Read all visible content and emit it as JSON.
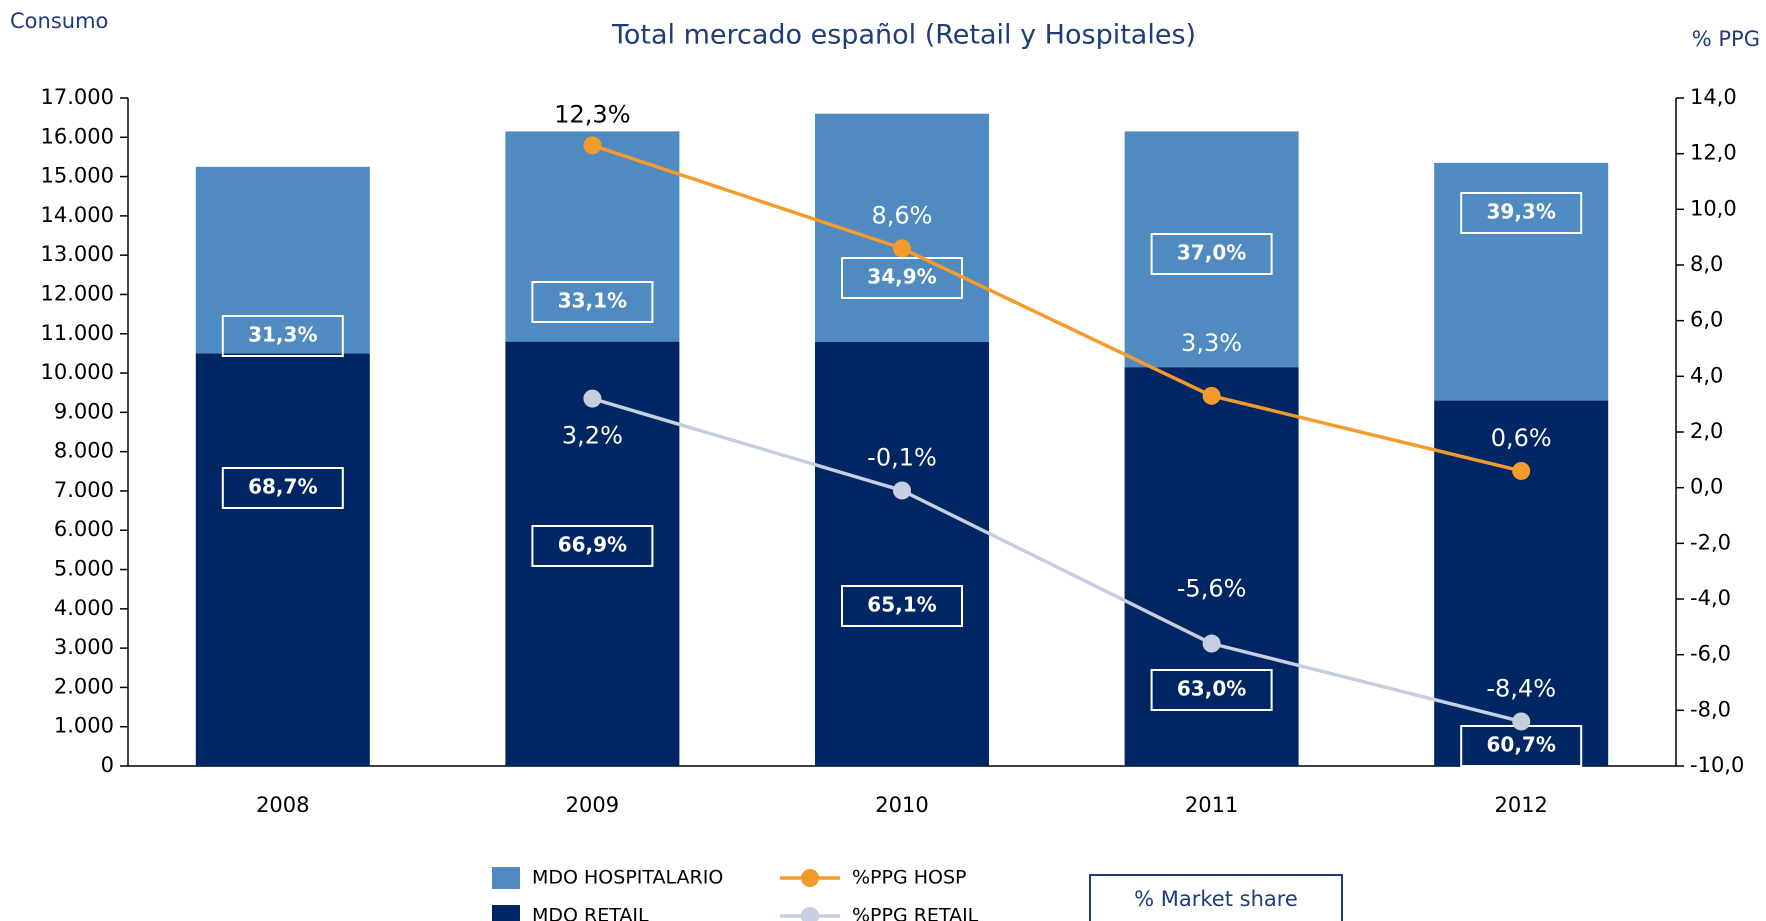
{
  "chart_data": {
    "type": "bar-line",
    "title": "Total mercado español (Retail y Hospitales)",
    "y_label": "Consumo",
    "y2_label": "% PPG",
    "categories": [
      "2008",
      "2009",
      "2010",
      "2011",
      "2012"
    ],
    "stacked": true,
    "series": [
      {
        "name": "MDO RETAIL",
        "color": "#002663",
        "values": [
          10500,
          10800,
          10790,
          10150,
          9300
        ],
        "share_labels": [
          "68,7%",
          "66,9%",
          "65,1%",
          "63,0%",
          "60,7%"
        ]
      },
      {
        "name": "MDO HOSPITALARIO",
        "color": "#4f8ac0",
        "values": [
          4750,
          5350,
          5810,
          6000,
          6050
        ],
        "share_labels": [
          "31,3%",
          "33,1%",
          "34,9%",
          "37,0%",
          "39,3%"
        ]
      },
      {
        "name": "%PPG HOSP",
        "type": "line",
        "axis": "y2",
        "color": "#f59a2c",
        "values": [
          null,
          12.3,
          8.6,
          3.3,
          0.6
        ],
        "value_labels": [
          null,
          "12,3%",
          "8,6%",
          "3,3%",
          "0,6%"
        ]
      },
      {
        "name": "%PPG RETAIL",
        "type": "line",
        "axis": "y2",
        "color": "#c5cfe0",
        "values": [
          null,
          3.2,
          -0.1,
          -5.6,
          -8.4
        ],
        "value_labels": [
          null,
          "3,2%",
          "-0,1%",
          "-5,6%",
          "-8,4%"
        ]
      }
    ],
    "share_legend": "% Market share",
    "ylim": [
      0,
      17000
    ],
    "yticks": [
      0,
      {
        "value": 1000,
        "label": "1.000"
      },
      {
        "value": 2000,
        "label": "2.000"
      },
      {
        "value": 3000,
        "label": "3.000"
      },
      {
        "value": 4000,
        "label": "4.000"
      },
      {
        "value": 5000,
        "label": "5.000"
      },
      {
        "value": 6000,
        "label": "6.000"
      },
      {
        "value": 7000,
        "label": "7.000"
      },
      {
        "value": 8000,
        "label": "8.000"
      },
      {
        "value": 9000,
        "label": "9.000"
      },
      {
        "value": 10000,
        "label": "10.000"
      },
      {
        "value": 11000,
        "label": "11.000"
      },
      {
        "value": 12000,
        "label": "12.000"
      },
      {
        "value": 13000,
        "label": "13.000"
      },
      {
        "value": 14000,
        "label": "14.000"
      },
      {
        "value": 15000,
        "label": "15.000"
      },
      {
        "value": 16000,
        "label": "16.000"
      },
      {
        "value": 17000,
        "label": "17.000"
      }
    ],
    "y2lim": [
      -10,
      14
    ],
    "y2ticks": [
      {
        "value": -10,
        "label": "-10,0"
      },
      {
        "value": -8,
        "label": "-8,0"
      },
      {
        "value": -6,
        "label": "-6,0"
      },
      {
        "value": -4,
        "label": "-4,0"
      },
      {
        "value": -2,
        "label": "-2,0"
      },
      {
        "value": 0,
        "label": "0,0"
      },
      {
        "value": 2,
        "label": "2,0"
      },
      {
        "value": 4,
        "label": "4,0"
      },
      {
        "value": 6,
        "label": "6,0"
      },
      {
        "value": 8,
        "label": "8,0"
      },
      {
        "value": 10,
        "label": "10,0"
      },
      {
        "value": 12,
        "label": "12,0"
      },
      {
        "value": 14,
        "label": "14,0"
      }
    ]
  }
}
